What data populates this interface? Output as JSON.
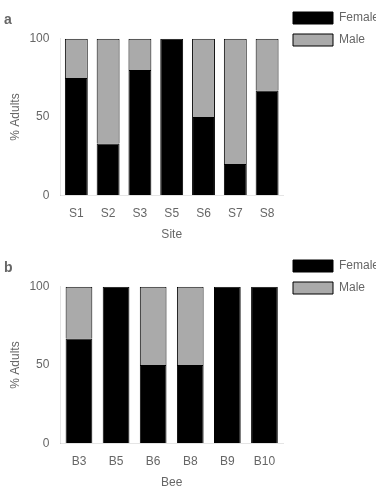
{
  "chart_data": [
    {
      "type": "bar",
      "title": "a",
      "stacked": true,
      "grid": false,
      "legend": "right",
      "categories": [
        "S1",
        "S2",
        "S3",
        "S5",
        "S6",
        "S7",
        "S8"
      ],
      "series": [
        {
          "name": "Female",
          "color": "#000000",
          "values": [
            75,
            33,
            80,
            100,
            50,
            20,
            67
          ]
        },
        {
          "name": "Male",
          "color": "#aaaaaa",
          "values": [
            25,
            67,
            20,
            0,
            50,
            80,
            33
          ]
        }
      ],
      "xlabel": "Site",
      "ylabel": "% Adults",
      "ylim": [
        0,
        100
      ],
      "yticks": [
        0,
        50,
        100
      ]
    },
    {
      "type": "bar",
      "title": "b",
      "stacked": true,
      "grid": false,
      "legend": "right",
      "categories": [
        "B3",
        "B5",
        "B6",
        "B8",
        "B9",
        "B10"
      ],
      "series": [
        {
          "name": "Female",
          "color": "#000000",
          "values": [
            67,
            100,
            50,
            50,
            100,
            100
          ]
        },
        {
          "name": "Male",
          "color": "#aaaaaa",
          "values": [
            33,
            0,
            50,
            50,
            0,
            0
          ]
        }
      ],
      "xlabel": "Bee",
      "ylabel": "% Adults",
      "ylim": [
        0,
        100
      ],
      "yticks": [
        0,
        50,
        100
      ]
    }
  ]
}
